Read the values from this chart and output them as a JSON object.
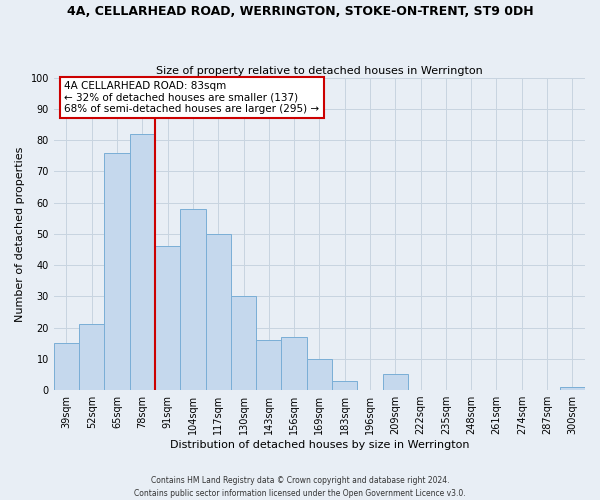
{
  "title1": "4A, CELLARHEAD ROAD, WERRINGTON, STOKE-ON-TRENT, ST9 0DH",
  "title2": "Size of property relative to detached houses in Werrington",
  "xlabel": "Distribution of detached houses by size in Werrington",
  "ylabel": "Number of detached properties",
  "bin_labels": [
    "39sqm",
    "52sqm",
    "65sqm",
    "78sqm",
    "91sqm",
    "104sqm",
    "117sqm",
    "130sqm",
    "143sqm",
    "156sqm",
    "169sqm",
    "183sqm",
    "196sqm",
    "209sqm",
    "222sqm",
    "235sqm",
    "248sqm",
    "261sqm",
    "274sqm",
    "287sqm",
    "300sqm"
  ],
  "bar_values": [
    15,
    21,
    76,
    82,
    46,
    58,
    50,
    30,
    16,
    17,
    10,
    3,
    0,
    5,
    0,
    0,
    0,
    0,
    0,
    0,
    1
  ],
  "bar_color": "#c5d8ed",
  "bar_edge_color": "#7aaed6",
  "vline_color": "#cc0000",
  "annotation_title": "4A CELLARHEAD ROAD: 83sqm",
  "annotation_line1": "← 32% of detached houses are smaller (137)",
  "annotation_line2": "68% of semi-detached houses are larger (295) →",
  "annotation_box_color": "#ffffff",
  "annotation_box_edge": "#cc0000",
  "ylim": [
    0,
    100
  ],
  "bg_color": "#e8eef5",
  "footer1": "Contains HM Land Registry data © Crown copyright and database right 2024.",
  "footer2": "Contains public sector information licensed under the Open Government Licence v3.0."
}
